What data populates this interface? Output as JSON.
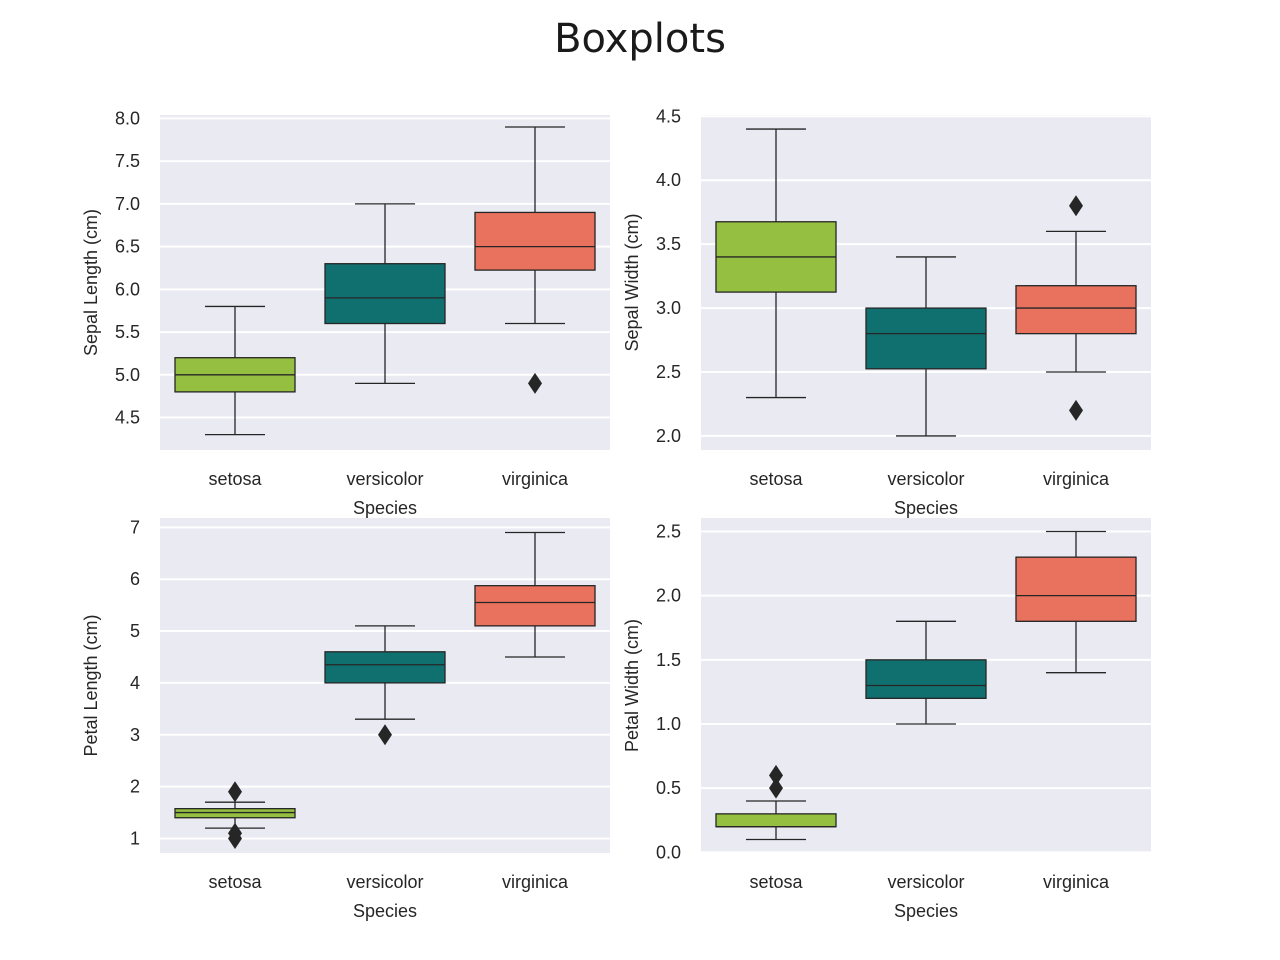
{
  "title": "Boxplots",
  "colors": {
    "setosa": "#95bf40",
    "versicolor": "#107070",
    "virginica": "#e8725d",
    "outlier": "#262626"
  },
  "chart_data": [
    {
      "type": "box",
      "xlabel": "Species",
      "ylabel": "Sepal Length (cm)",
      "ylim": [
        4.12,
        8.04
      ],
      "yticks": [
        "4.5",
        "5.0",
        "5.5",
        "6.0",
        "6.5",
        "7.0",
        "7.5",
        "8.0"
      ],
      "categories": [
        "setosa",
        "versicolor",
        "virginica"
      ],
      "boxes": [
        {
          "whislo": 4.3,
          "q1": 4.8,
          "med": 5.0,
          "q3": 5.2,
          "whishi": 5.8,
          "fliers": []
        },
        {
          "whislo": 4.9,
          "q1": 5.6,
          "med": 5.9,
          "q3": 6.3,
          "whishi": 7.0,
          "fliers": []
        },
        {
          "whislo": 5.6,
          "q1": 6.225,
          "med": 6.5,
          "q3": 6.9,
          "whishi": 7.9,
          "fliers": [
            4.9
          ]
        }
      ]
    },
    {
      "type": "box",
      "xlabel": "Species",
      "ylabel": "Sepal Width (cm)",
      "ylim": [
        1.89,
        4.51
      ],
      "yticks": [
        "2.0",
        "2.5",
        "3.0",
        "3.5",
        "4.0",
        "4.5"
      ],
      "categories": [
        "setosa",
        "versicolor",
        "virginica"
      ],
      "boxes": [
        {
          "whislo": 2.3,
          "q1": 3.125,
          "med": 3.4,
          "q3": 3.675,
          "whishi": 4.4,
          "fliers": []
        },
        {
          "whislo": 2.0,
          "q1": 2.525,
          "med": 2.8,
          "q3": 3.0,
          "whishi": 3.4,
          "fliers": []
        },
        {
          "whislo": 2.5,
          "q1": 2.8,
          "med": 3.0,
          "q3": 3.175,
          "whishi": 3.6,
          "fliers": [
            3.8,
            2.2
          ]
        }
      ]
    },
    {
      "type": "box",
      "xlabel": "Species",
      "ylabel": "Petal Length (cm)",
      "ylim": [
        0.72,
        7.18
      ],
      "yticks": [
        "1",
        "2",
        "3",
        "4",
        "5",
        "6",
        "7"
      ],
      "categories": [
        "setosa",
        "versicolor",
        "virginica"
      ],
      "boxes": [
        {
          "whislo": 1.2,
          "q1": 1.4,
          "med": 1.5,
          "q3": 1.575,
          "whishi": 1.7,
          "fliers": [
            1.9,
            1.1,
            1.0
          ]
        },
        {
          "whislo": 3.3,
          "q1": 4.0,
          "med": 4.35,
          "q3": 4.6,
          "whishi": 5.1,
          "fliers": [
            3.0
          ]
        },
        {
          "whislo": 4.5,
          "q1": 5.1,
          "med": 5.55,
          "q3": 5.875,
          "whishi": 6.9,
          "fliers": []
        }
      ]
    },
    {
      "type": "box",
      "xlabel": "Species",
      "ylabel": "Petal Width (cm)",
      "ylim": [
        -0.005,
        2.605
      ],
      "yticks": [
        "0.0",
        "0.5",
        "1.0",
        "1.5",
        "2.0",
        "2.5"
      ],
      "categories": [
        "setosa",
        "versicolor",
        "virginica"
      ],
      "boxes": [
        {
          "whislo": 0.1,
          "q1": 0.2,
          "med": 0.2,
          "q3": 0.3,
          "whishi": 0.4,
          "fliers": [
            0.5,
            0.6
          ]
        },
        {
          "whislo": 1.0,
          "q1": 1.2,
          "med": 1.3,
          "q3": 1.5,
          "whishi": 1.8,
          "fliers": []
        },
        {
          "whislo": 1.4,
          "q1": 1.8,
          "med": 2.0,
          "q3": 2.3,
          "whishi": 2.5,
          "fliers": []
        }
      ]
    }
  ]
}
